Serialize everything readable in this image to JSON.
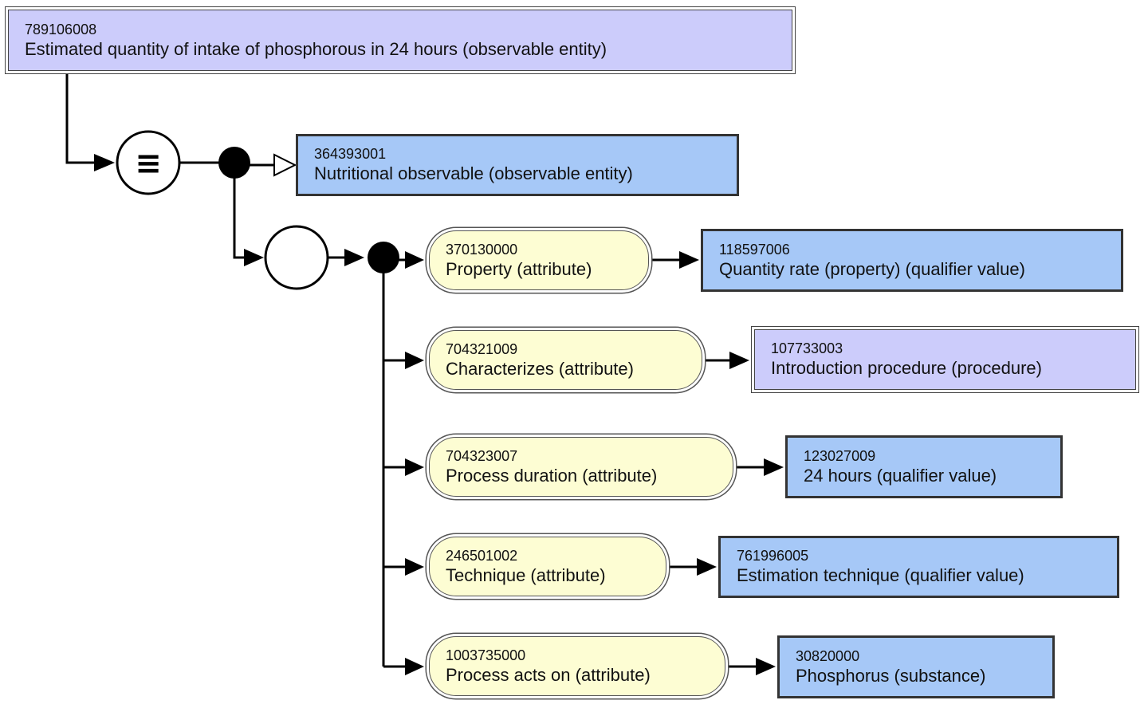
{
  "focus_concept": {
    "sctid": "789106008",
    "label": "Estimated quantity of intake of phosphorous in 24 hours (observable entity)"
  },
  "definition_status_symbol": "≡",
  "parent_concept": {
    "sctid": "364393001",
    "label": "Nutritional observable (observable entity)"
  },
  "relationships": [
    {
      "attribute": {
        "sctid": "370130000",
        "label": "Property (attribute)"
      },
      "value": {
        "sctid": "118597006",
        "label": "Quantity rate (property) (qualifier value)"
      }
    },
    {
      "attribute": {
        "sctid": "704321009",
        "label": "Characterizes (attribute)"
      },
      "value": {
        "sctid": "107733003",
        "label": "Introduction procedure (procedure)"
      }
    },
    {
      "attribute": {
        "sctid": "704323007",
        "label": "Process duration (attribute)"
      },
      "value": {
        "sctid": "123027009",
        "label": "24 hours (qualifier value)"
      }
    },
    {
      "attribute": {
        "sctid": "246501002",
        "label": "Technique (attribute)"
      },
      "value": {
        "sctid": "761996005",
        "label": "Estimation technique (qualifier value)"
      }
    },
    {
      "attribute": {
        "sctid": "1003735000",
        "label": "Process acts on (attribute)"
      },
      "value": {
        "sctid": "30820000",
        "label": "Phosphorus (substance)"
      }
    }
  ]
}
